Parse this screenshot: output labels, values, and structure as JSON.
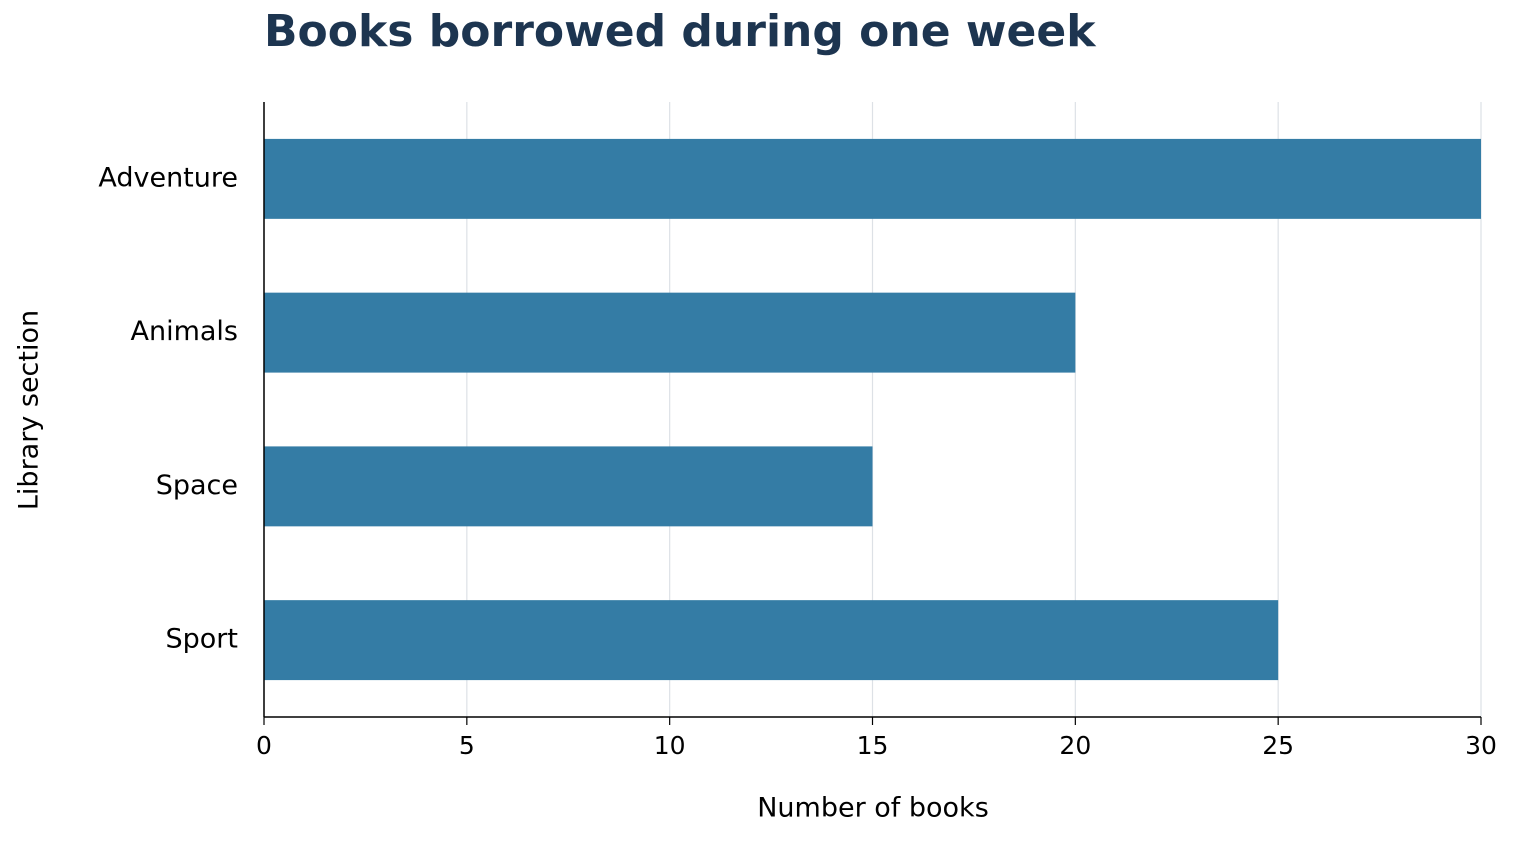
{
  "chart_data": {
    "type": "bar",
    "orientation": "horizontal",
    "title": "Books borrowed during one week",
    "x_label": "Number of books",
    "y_label": "Library section",
    "categories": [
      "Adventure",
      "Animals",
      "Space",
      "Sport"
    ],
    "values": [
      30,
      20,
      15,
      25
    ],
    "color": "#347ca5",
    "xlim": [
      0,
      30
    ],
    "xticks": [
      0,
      5,
      10,
      15,
      20,
      25,
      30
    ],
    "grid": true
  }
}
